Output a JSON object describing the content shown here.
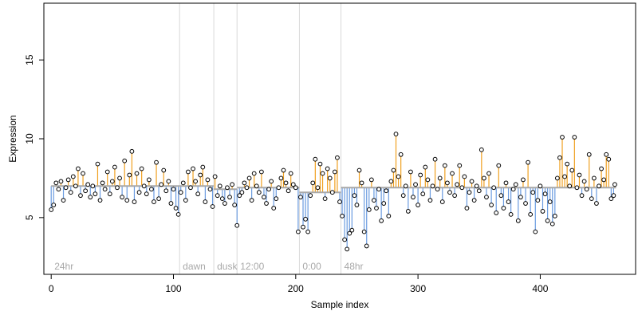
{
  "chart_data": {
    "type": "scatter",
    "xlabel": "Sample index",
    "ylabel": "Expression",
    "xlim": [
      -6,
      478
    ],
    "ylim": [
      1.4,
      18.6
    ],
    "x_ticks": [
      0,
      100,
      200,
      300,
      400
    ],
    "y_ticks": [
      5,
      10,
      15
    ],
    "grid": false,
    "legend": "none",
    "colors": {
      "point_stroke": "#000000",
      "point_fill": "#ffffff",
      "above_fit": "#f0a020",
      "below_fit": "#6a9be0",
      "fit": "#a8a8a8",
      "region_line": "#d8d8d8",
      "region_text": "#a8a8a8"
    },
    "regions": [
      {
        "label": "24hr",
        "x": 0
      },
      {
        "label": "dawn",
        "x": 105
      },
      {
        "label": "dusk",
        "x": 133
      },
      {
        "label": "12:00",
        "x": 152
      },
      {
        "label": "0:00",
        "x": 203
      },
      {
        "label": "48hr",
        "x": 237
      }
    ],
    "fit_segments": [
      {
        "x0": 0,
        "x1": 105,
        "y": 7.0
      },
      {
        "x0": 105,
        "x1": 133,
        "y": 7.0
      },
      {
        "x0": 133,
        "x1": 152,
        "y": 6.8
      },
      {
        "x0": 152,
        "x1": 203,
        "y": 6.9
      },
      {
        "x0": 203,
        "x1": 237,
        "y": 6.6
      },
      {
        "x0": 237,
        "x1": 462,
        "y": 6.9
      }
    ],
    "points": [
      [
        0,
        5.5
      ],
      [
        2,
        5.8
      ],
      [
        4,
        7.2
      ],
      [
        6,
        6.8
      ],
      [
        8,
        7.3
      ],
      [
        10,
        6.1
      ],
      [
        12,
        6.9
      ],
      [
        14,
        7.4
      ],
      [
        16,
        6.6
      ],
      [
        18,
        7.6
      ],
      [
        20,
        7.0
      ],
      [
        22,
        8.1
      ],
      [
        24,
        6.4
      ],
      [
        26,
        7.8
      ],
      [
        28,
        6.7
      ],
      [
        30,
        7.1
      ],
      [
        32,
        6.3
      ],
      [
        34,
        7.0
      ],
      [
        36,
        6.5
      ],
      [
        38,
        8.4
      ],
      [
        40,
        6.1
      ],
      [
        42,
        7.2
      ],
      [
        44,
        6.8
      ],
      [
        46,
        7.9
      ],
      [
        48,
        6.5
      ],
      [
        50,
        7.3
      ],
      [
        52,
        8.2
      ],
      [
        54,
        6.9
      ],
      [
        56,
        7.5
      ],
      [
        58,
        6.3
      ],
      [
        60,
        8.6
      ],
      [
        62,
        6.1
      ],
      [
        64,
        7.7
      ],
      [
        66,
        9.2
      ],
      [
        68,
        6.0
      ],
      [
        70,
        7.8
      ],
      [
        72,
        6.6
      ],
      [
        74,
        8.1
      ],
      [
        76,
        7.0
      ],
      [
        78,
        6.5
      ],
      [
        80,
        7.4
      ],
      [
        82,
        6.8
      ],
      [
        84,
        6.0
      ],
      [
        86,
        8.5
      ],
      [
        88,
        6.2
      ],
      [
        90,
        7.1
      ],
      [
        92,
        8.0
      ],
      [
        94,
        6.7
      ],
      [
        96,
        7.3
      ],
      [
        98,
        5.9
      ],
      [
        100,
        6.8
      ],
      [
        102,
        5.6
      ],
      [
        104,
        5.2
      ],
      [
        106,
        6.6
      ],
      [
        108,
        7.2
      ],
      [
        110,
        6.1
      ],
      [
        112,
        7.9
      ],
      [
        114,
        6.9
      ],
      [
        116,
        8.1
      ],
      [
        118,
        7.3
      ],
      [
        120,
        6.5
      ],
      [
        122,
        7.7
      ],
      [
        124,
        8.2
      ],
      [
        126,
        6.0
      ],
      [
        128,
        7.4
      ],
      [
        130,
        6.8
      ],
      [
        132,
        5.7
      ],
      [
        134,
        7.6
      ],
      [
        136,
        6.4
      ],
      [
        138,
        7.0
      ],
      [
        140,
        6.2
      ],
      [
        142,
        5.9
      ],
      [
        144,
        6.9
      ],
      [
        146,
        6.3
      ],
      [
        148,
        7.1
      ],
      [
        150,
        5.8
      ],
      [
        152,
        4.5
      ],
      [
        154,
        6.4
      ],
      [
        156,
        6.6
      ],
      [
        158,
        7.2
      ],
      [
        160,
        6.9
      ],
      [
        162,
        7.5
      ],
      [
        164,
        6.1
      ],
      [
        166,
        7.8
      ],
      [
        168,
        7.0
      ],
      [
        170,
        6.6
      ],
      [
        172,
        7.9
      ],
      [
        174,
        6.3
      ],
      [
        176,
        5.9
      ],
      [
        178,
        6.8
      ],
      [
        180,
        7.3
      ],
      [
        182,
        5.6
      ],
      [
        184,
        6.2
      ],
      [
        186,
        6.9
      ],
      [
        188,
        7.5
      ],
      [
        190,
        8.0
      ],
      [
        192,
        7.2
      ],
      [
        194,
        6.7
      ],
      [
        196,
        7.8
      ],
      [
        198,
        7.1
      ],
      [
        200,
        6.9
      ],
      [
        202,
        4.1
      ],
      [
        204,
        6.3
      ],
      [
        206,
        4.4
      ],
      [
        208,
        4.9
      ],
      [
        210,
        4.1
      ],
      [
        212,
        6.4
      ],
      [
        214,
        7.2
      ],
      [
        216,
        8.7
      ],
      [
        218,
        6.9
      ],
      [
        220,
        8.4
      ],
      [
        222,
        7.8
      ],
      [
        224,
        6.2
      ],
      [
        226,
        8.1
      ],
      [
        228,
        7.5
      ],
      [
        230,
        6.6
      ],
      [
        232,
        7.9
      ],
      [
        234,
        8.8
      ],
      [
        236,
        6.0
      ],
      [
        238,
        5.1
      ],
      [
        240,
        3.6
      ],
      [
        242,
        3.0
      ],
      [
        244,
        4.0
      ],
      [
        246,
        4.2
      ],
      [
        248,
        6.4
      ],
      [
        250,
        5.8
      ],
      [
        252,
        8.0
      ],
      [
        254,
        7.2
      ],
      [
        256,
        4.1
      ],
      [
        258,
        3.2
      ],
      [
        260,
        5.5
      ],
      [
        262,
        7.4
      ],
      [
        264,
        6.1
      ],
      [
        266,
        5.6
      ],
      [
        268,
        6.8
      ],
      [
        270,
        4.8
      ],
      [
        272,
        5.9
      ],
      [
        274,
        6.7
      ],
      [
        276,
        5.1
      ],
      [
        278,
        7.3
      ],
      [
        280,
        8.0
      ],
      [
        282,
        10.3
      ],
      [
        284,
        7.6
      ],
      [
        286,
        9.0
      ],
      [
        288,
        6.4
      ],
      [
        290,
        7.0
      ],
      [
        292,
        5.4
      ],
      [
        294,
        7.9
      ],
      [
        296,
        6.3
      ],
      [
        298,
        7.1
      ],
      [
        300,
        5.8
      ],
      [
        302,
        7.7
      ],
      [
        304,
        6.5
      ],
      [
        306,
        8.2
      ],
      [
        308,
        7.4
      ],
      [
        310,
        6.1
      ],
      [
        312,
        7.0
      ],
      [
        314,
        8.7
      ],
      [
        316,
        6.8
      ],
      [
        318,
        7.5
      ],
      [
        320,
        6.0
      ],
      [
        322,
        8.3
      ],
      [
        324,
        7.2
      ],
      [
        326,
        6.6
      ],
      [
        328,
        7.8
      ],
      [
        330,
        6.4
      ],
      [
        332,
        7.1
      ],
      [
        334,
        8.3
      ],
      [
        336,
        6.9
      ],
      [
        338,
        7.6
      ],
      [
        340,
        5.6
      ],
      [
        342,
        6.6
      ],
      [
        344,
        7.3
      ],
      [
        346,
        6.1
      ],
      [
        348,
        7.0
      ],
      [
        350,
        6.7
      ],
      [
        352,
        9.3
      ],
      [
        354,
        7.5
      ],
      [
        356,
        6.3
      ],
      [
        358,
        7.8
      ],
      [
        360,
        5.8
      ],
      [
        362,
        6.9
      ],
      [
        364,
        5.3
      ],
      [
        366,
        8.3
      ],
      [
        368,
        6.4
      ],
      [
        370,
        5.6
      ],
      [
        372,
        7.2
      ],
      [
        374,
        6.0
      ],
      [
        376,
        5.2
      ],
      [
        378,
        6.8
      ],
      [
        380,
        7.1
      ],
      [
        382,
        4.8
      ],
      [
        384,
        6.3
      ],
      [
        386,
        7.4
      ],
      [
        388,
        5.9
      ],
      [
        390,
        8.5
      ],
      [
        392,
        5.2
      ],
      [
        394,
        6.6
      ],
      [
        396,
        4.1
      ],
      [
        398,
        6.1
      ],
      [
        400,
        7.0
      ],
      [
        402,
        5.4
      ],
      [
        404,
        6.5
      ],
      [
        406,
        4.8
      ],
      [
        408,
        6.0
      ],
      [
        410,
        4.6
      ],
      [
        412,
        5.1
      ],
      [
        414,
        7.5
      ],
      [
        416,
        8.8
      ],
      [
        418,
        10.1
      ],
      [
        420,
        7.6
      ],
      [
        422,
        8.4
      ],
      [
        424,
        7.0
      ],
      [
        426,
        8.0
      ],
      [
        428,
        10.1
      ],
      [
        430,
        6.9
      ],
      [
        432,
        7.7
      ],
      [
        434,
        6.4
      ],
      [
        436,
        7.3
      ],
      [
        438,
        6.8
      ],
      [
        440,
        9.0
      ],
      [
        442,
        6.2
      ],
      [
        444,
        7.5
      ],
      [
        446,
        5.9
      ],
      [
        448,
        7.0
      ],
      [
        450,
        8.1
      ],
      [
        452,
        7.4
      ],
      [
        454,
        9.0
      ],
      [
        456,
        8.7
      ],
      [
        458,
        6.2
      ],
      [
        460,
        6.4
      ],
      [
        461,
        7.1
      ]
    ]
  }
}
